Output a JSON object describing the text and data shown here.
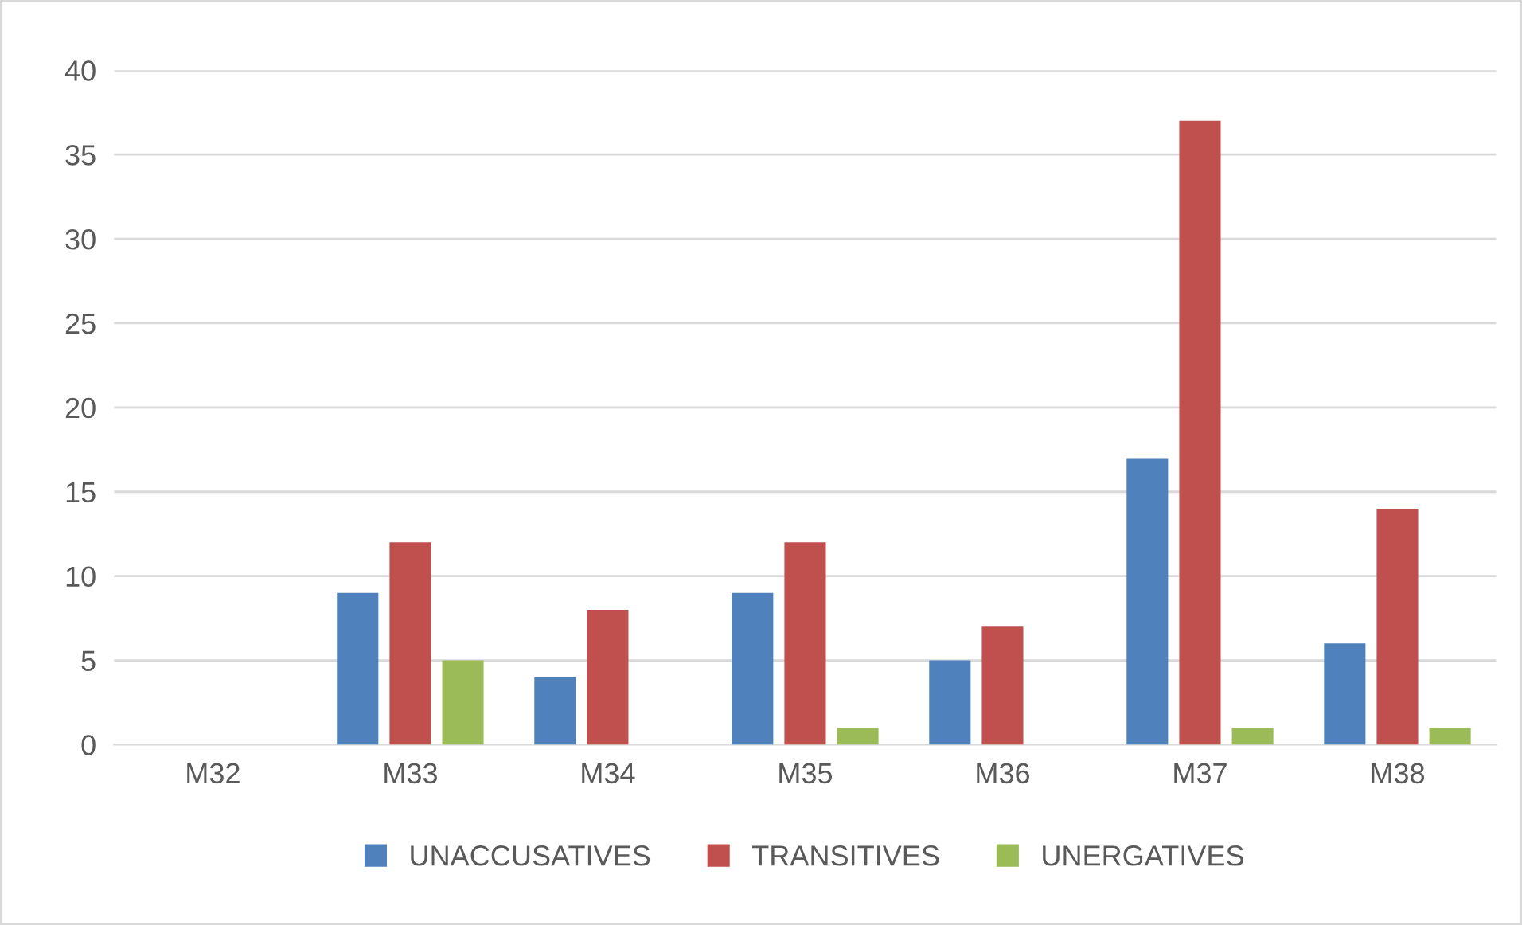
{
  "chart_data": {
    "type": "bar",
    "categories": [
      "M32",
      "M33",
      "M34",
      "M35",
      "M36",
      "M37",
      "M38"
    ],
    "series": [
      {
        "name": "UNACCUSATIVES",
        "color": "#4f81bd",
        "values": [
          0,
          9,
          4,
          9,
          5,
          17,
          6
        ]
      },
      {
        "name": "TRANSITIVES",
        "color": "#c0504d",
        "values": [
          0,
          12,
          8,
          12,
          7,
          37,
          14
        ]
      },
      {
        "name": "UNERGATIVES",
        "color": "#9bbb59",
        "values": [
          0,
          5,
          0,
          1,
          0,
          1,
          1
        ]
      }
    ],
    "ylim": [
      0,
      40
    ],
    "yticks": [
      0,
      5,
      10,
      15,
      20,
      25,
      30,
      35,
      40
    ],
    "grid": "y",
    "legend": "bottom"
  }
}
